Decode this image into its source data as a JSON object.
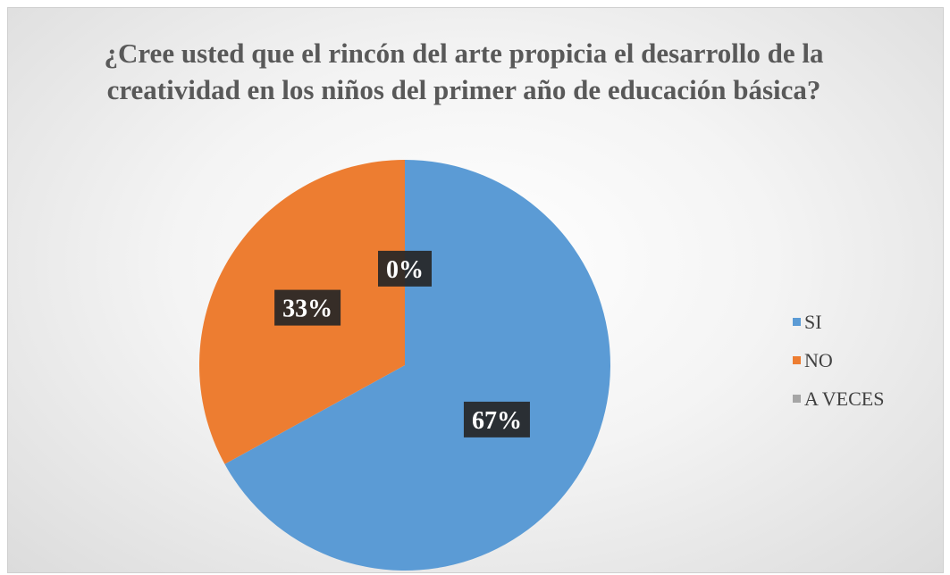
{
  "chart_data": {
    "type": "pie",
    "title": "¿Cree usted que el rincón del arte propicia el desarrollo de la creatividad en los niños del primer año de educación básica?",
    "categories": [
      "SI",
      "NO",
      "A VECES"
    ],
    "values": [
      67,
      33,
      0
    ],
    "data_labels": [
      "67%",
      "33%",
      "0%"
    ],
    "colors": [
      "#5B9BD5",
      "#ED7D31",
      "#A5A5A5"
    ],
    "legend_position": "right"
  }
}
